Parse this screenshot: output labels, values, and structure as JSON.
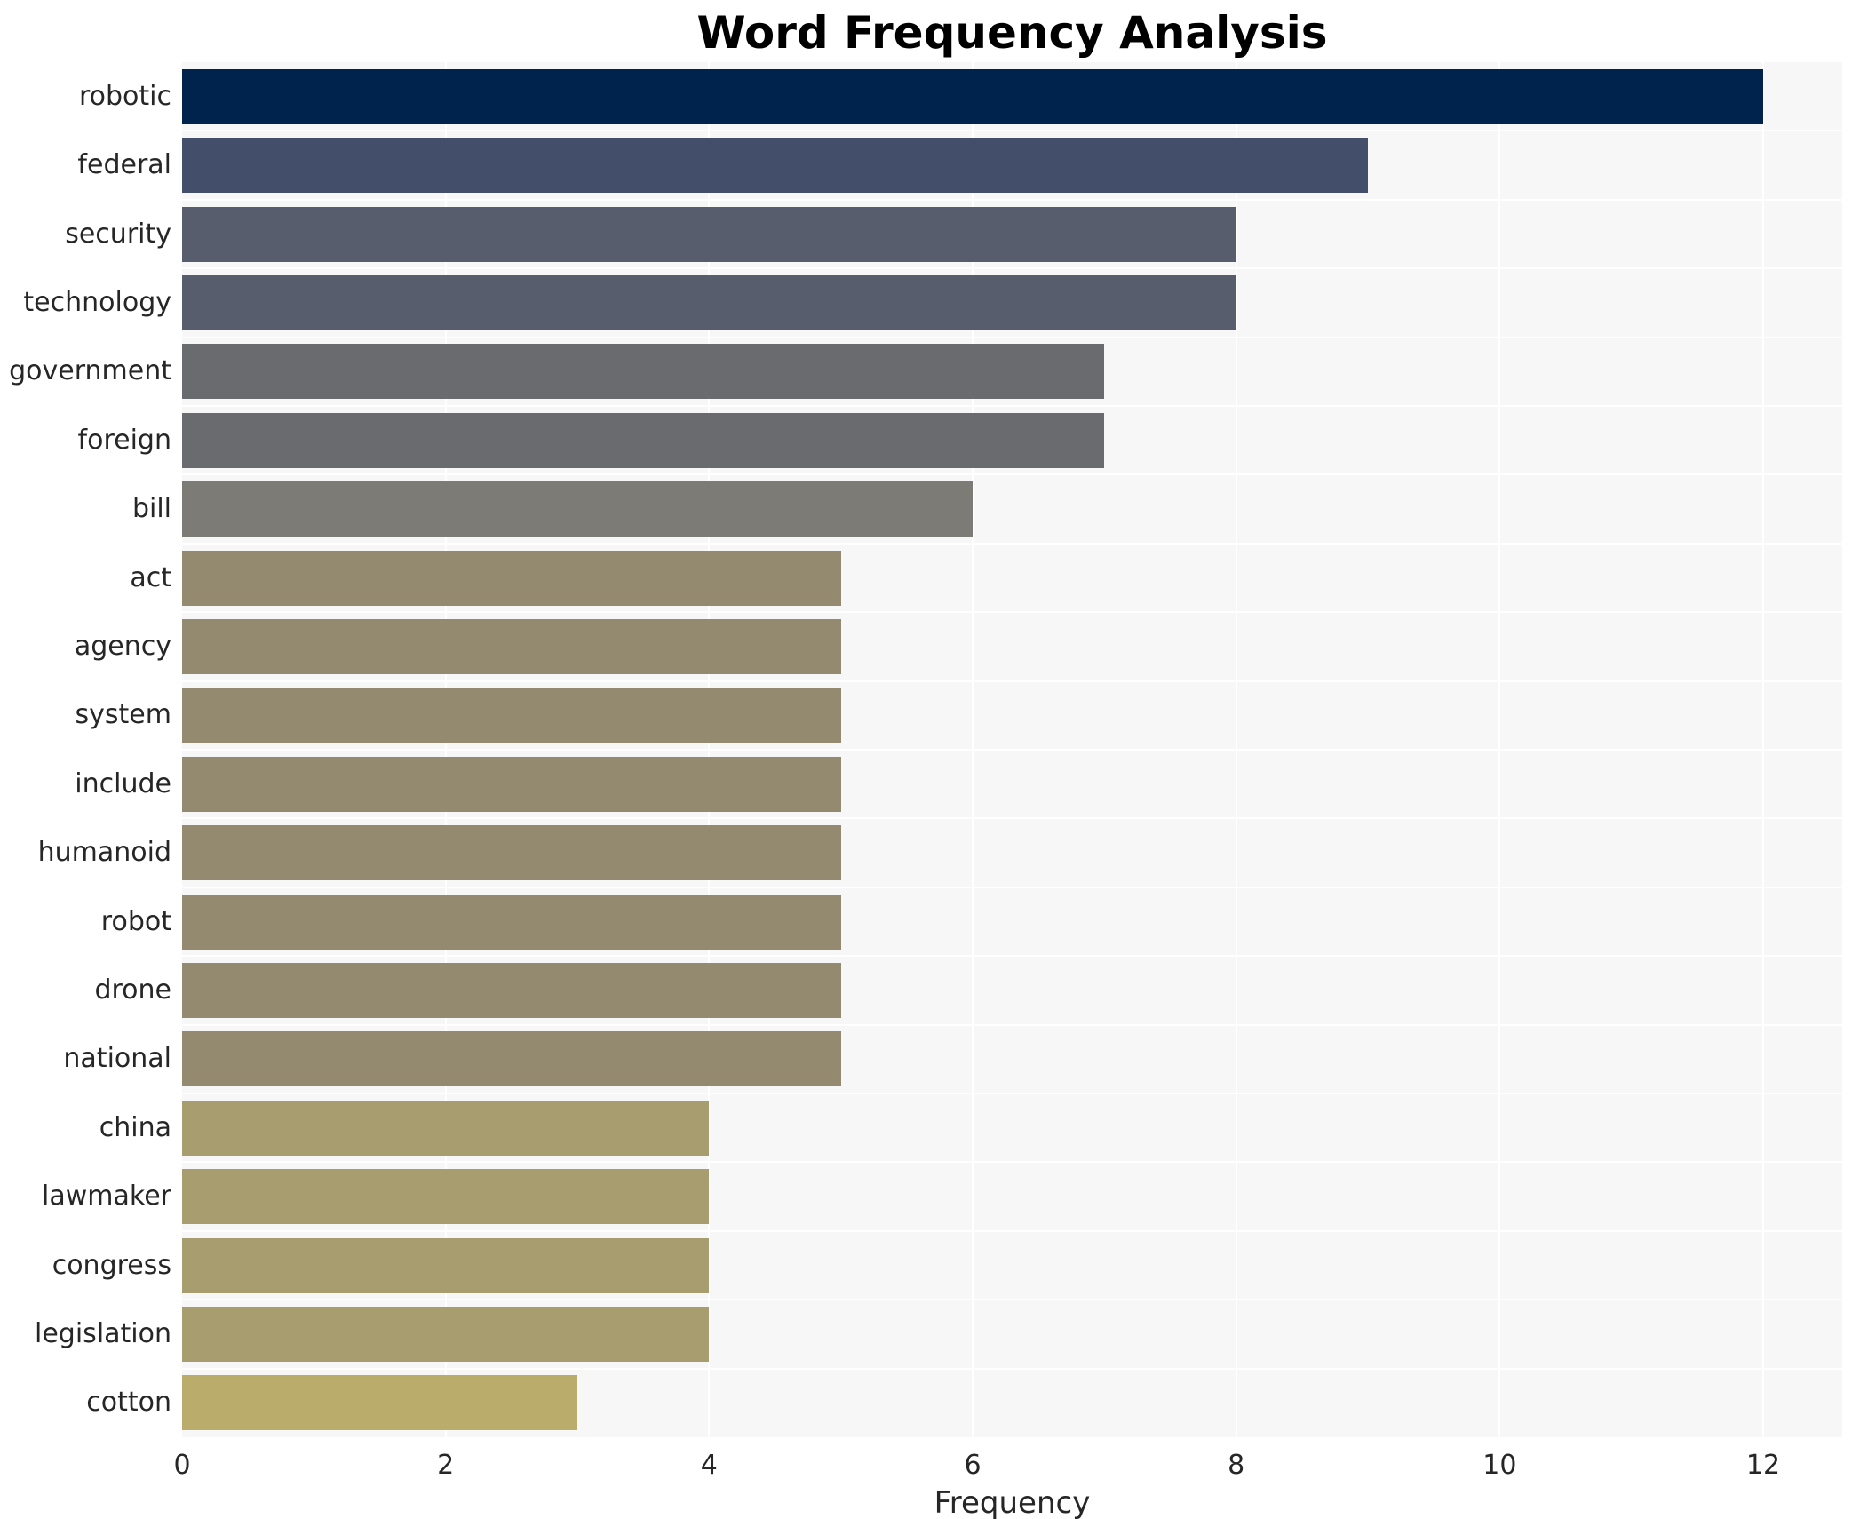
{
  "figure": {
    "title": "Word Frequency Analysis",
    "xlabel": "Frequency"
  },
  "chart_data": {
    "type": "bar",
    "orientation": "horizontal",
    "title": "Word Frequency Analysis",
    "xlabel": "Frequency",
    "ylabel": "",
    "categories": [
      "robotic",
      "federal",
      "security",
      "technology",
      "government",
      "foreign",
      "bill",
      "act",
      "agency",
      "system",
      "include",
      "humanoid",
      "robot",
      "drone",
      "national",
      "china",
      "lawmaker",
      "congress",
      "legislation",
      "cotton"
    ],
    "values": [
      12,
      9,
      8,
      8,
      7,
      7,
      6,
      5,
      5,
      5,
      5,
      5,
      5,
      5,
      5,
      4,
      4,
      4,
      4,
      3
    ],
    "bar_colors": [
      "#00234e",
      "#434e6b",
      "#575d6c",
      "#575d6c",
      "#6a6b6f",
      "#6a6b6f",
      "#7c7b75",
      "#938a70",
      "#938a70",
      "#938a70",
      "#938a70",
      "#938a70",
      "#938a70",
      "#938a70",
      "#938a70",
      "#a79d6f",
      "#a79d6f",
      "#a79d6f",
      "#a79d6f",
      "#baac6a"
    ],
    "xticks": [
      0,
      2,
      4,
      6,
      8,
      10,
      12
    ],
    "xlim": [
      0,
      12.6
    ],
    "grid": true,
    "legend": "none",
    "plot_background": "#f7f7f7",
    "gridline_color": "#ffffff",
    "text_color": "#262626",
    "title_color": "#000000"
  }
}
